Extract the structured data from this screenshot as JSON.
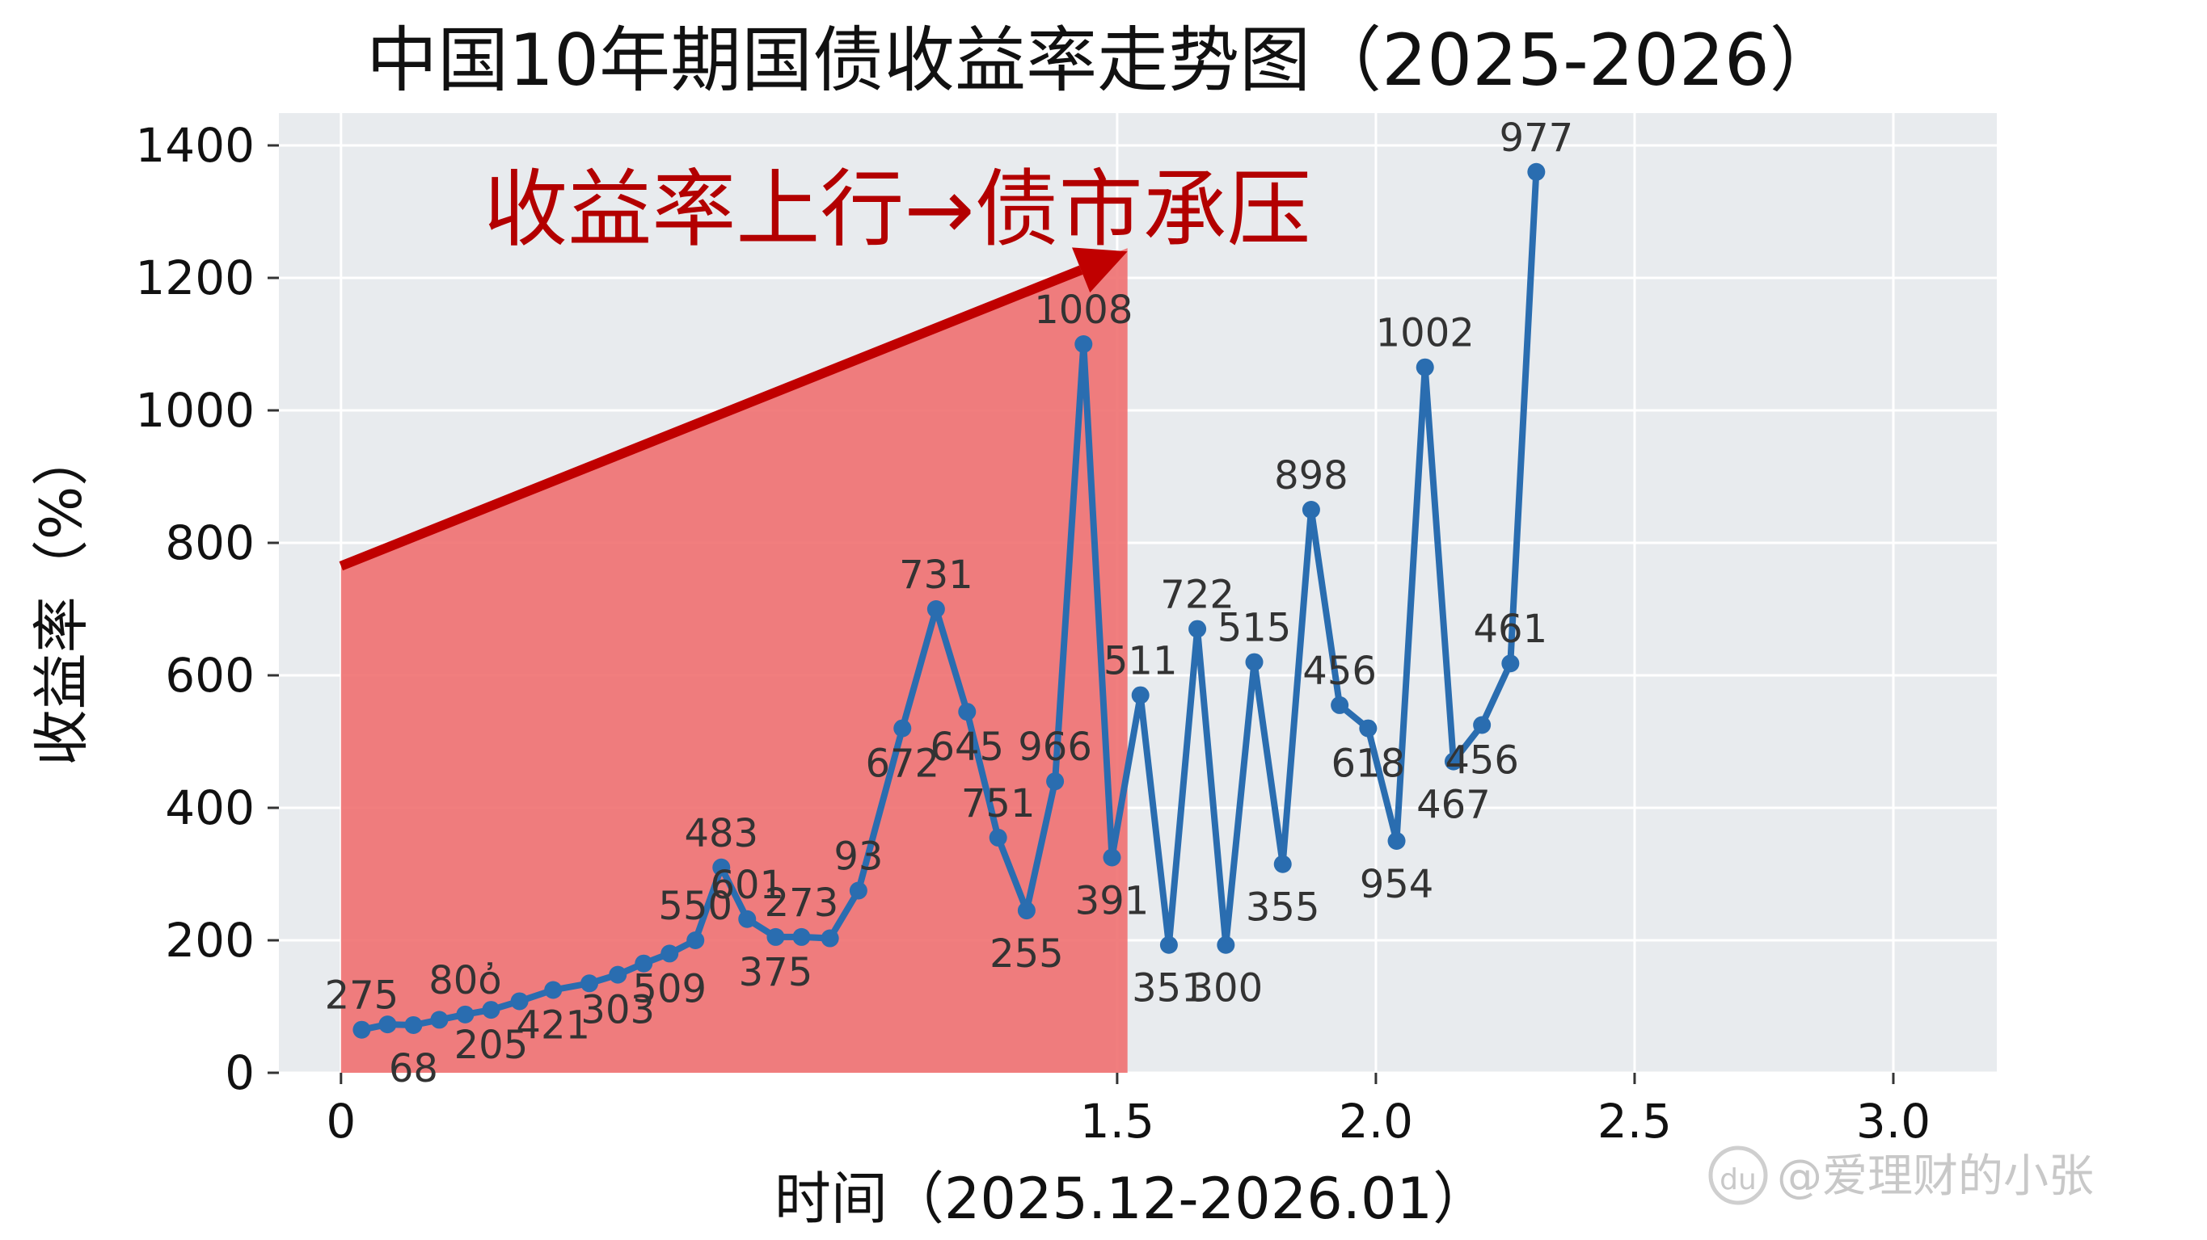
{
  "chart_data": {
    "type": "line",
    "title": "中国10年期国债收益率走势图（2025-2026）",
    "xlabel": "时间（2025.12-2026.01）",
    "ylabel": "收益率（%）",
    "xlim": [
      -0.12,
      3.2
    ],
    "ylim": [
      0,
      1400
    ],
    "grid": true,
    "x_ticks": [
      {
        "value": 0,
        "label": "0"
      },
      {
        "value": 1.5,
        "label": "1.5"
      },
      {
        "value": 2.0,
        "label": "2.0"
      },
      {
        "value": 2.5,
        "label": "2.5"
      },
      {
        "value": 3.0,
        "label": "3.0"
      }
    ],
    "y_ticks": [
      {
        "value": 0,
        "label": "0"
      },
      {
        "value": 200,
        "label": "200"
      },
      {
        "value": 400,
        "label": "400"
      },
      {
        "value": 600,
        "label": "600"
      },
      {
        "value": 800,
        "label": "800"
      },
      {
        "value": 1000,
        "label": "1000"
      },
      {
        "value": 1200,
        "label": "1200"
      },
      {
        "value": 1400,
        "label": "1400"
      }
    ],
    "series_color": "#2a6db0",
    "points": [
      {
        "x": 0.04,
        "y": 65,
        "label": "275"
      },
      {
        "x": 0.09,
        "y": 73,
        "label": ""
      },
      {
        "x": 0.14,
        "y": 72,
        "label": "68"
      },
      {
        "x": 0.19,
        "y": 80,
        "label": ""
      },
      {
        "x": 0.24,
        "y": 88,
        "label": "80ὀ"
      },
      {
        "x": 0.29,
        "y": 95,
        "label": "205"
      },
      {
        "x": 0.345,
        "y": 108,
        "label": ""
      },
      {
        "x": 0.41,
        "y": 125,
        "label": "421"
      },
      {
        "x": 0.48,
        "y": 135,
        "label": ""
      },
      {
        "x": 0.535,
        "y": 148,
        "label": "303"
      },
      {
        "x": 0.585,
        "y": 165,
        "label": ""
      },
      {
        "x": 0.635,
        "y": 180,
        "label": "509"
      },
      {
        "x": 0.685,
        "y": 200,
        "label": "550"
      },
      {
        "x": 0.735,
        "y": 310,
        "label": "483"
      },
      {
        "x": 0.785,
        "y": 232,
        "label": "601"
      },
      {
        "x": 0.84,
        "y": 205,
        "label": "375"
      },
      {
        "x": 0.89,
        "y": 205,
        "label": "273"
      },
      {
        "x": 0.945,
        "y": 203,
        "label": ""
      },
      {
        "x": 1.0,
        "y": 275,
        "label": "93"
      },
      {
        "x": 1.085,
        "y": 520,
        "label": "672"
      },
      {
        "x": 1.15,
        "y": 700,
        "label": "731"
      },
      {
        "x": 1.21,
        "y": 545,
        "label": "645"
      },
      {
        "x": 1.27,
        "y": 355,
        "label": "751"
      },
      {
        "x": 1.325,
        "y": 245,
        "label": "255"
      },
      {
        "x": 1.38,
        "y": 440,
        "label": "966"
      },
      {
        "x": 1.435,
        "y": 1100,
        "label": "1008"
      },
      {
        "x": 1.49,
        "y": 325,
        "label": "391"
      },
      {
        "x": 1.545,
        "y": 570,
        "label": "511"
      },
      {
        "x": 1.6,
        "y": 193,
        "label": "351"
      },
      {
        "x": 1.655,
        "y": 670,
        "label": "722"
      },
      {
        "x": 1.71,
        "y": 193,
        "label": "300"
      },
      {
        "x": 1.765,
        "y": 620,
        "label": "515"
      },
      {
        "x": 1.82,
        "y": 315,
        "label": "355"
      },
      {
        "x": 1.875,
        "y": 850,
        "label": "898"
      },
      {
        "x": 1.93,
        "y": 555,
        "label": "456"
      },
      {
        "x": 1.985,
        "y": 520,
        "label": "618"
      },
      {
        "x": 2.04,
        "y": 350,
        "label": "954"
      },
      {
        "x": 2.095,
        "y": 1065,
        "label": "1002"
      },
      {
        "x": 2.15,
        "y": 470,
        "label": "467"
      },
      {
        "x": 2.205,
        "y": 525,
        "label": "456"
      },
      {
        "x": 2.26,
        "y": 618,
        "label": "461"
      },
      {
        "x": 2.31,
        "y": 1360,
        "label": "977"
      }
    ],
    "shaded_region": {
      "color": "#f07070",
      "x_start": 0,
      "x_end": 1.52,
      "y_top_start": 765,
      "y_top_end": 1245
    },
    "annotation": {
      "text": "收益率上行→债市承压",
      "arrow_from": {
        "x": 0,
        "y": 765
      },
      "arrow_to": {
        "x": 1.52,
        "y": 1240
      },
      "color": "#c00000"
    }
  },
  "watermark": {
    "text": "@爱理财的小张",
    "icon": "baidu-paw-icon",
    "icon_text": "du"
  }
}
